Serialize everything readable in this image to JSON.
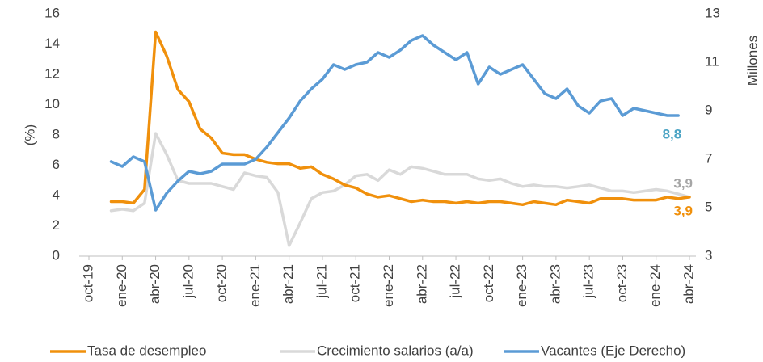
{
  "chart_data": {
    "type": "line",
    "ylabel": "(%)",
    "y2label": "Millones",
    "categories": [
      "oct-19",
      null,
      null,
      "ene-20",
      null,
      null,
      "abr-20",
      null,
      null,
      "jul-20",
      null,
      null,
      "oct-20",
      null,
      null,
      "ene-21",
      null,
      null,
      "abr-21",
      null,
      null,
      "jul-21",
      null,
      null,
      "oct-21",
      null,
      null,
      "ene-22",
      null,
      null,
      "abr-22",
      null,
      null,
      "jul-22",
      null,
      null,
      "oct-22",
      null,
      null,
      "ene-23",
      null,
      null,
      "abr-23",
      null,
      null,
      "jul-23",
      null,
      null,
      "oct-23",
      null,
      null,
      "ene-24",
      null,
      null,
      "abr-24"
    ],
    "ylim": [
      0,
      16
    ],
    "yticks": [
      0,
      2,
      4,
      6,
      8,
      10,
      12,
      14,
      16
    ],
    "y2lim": [
      3,
      13
    ],
    "y2ticks": [
      3,
      5,
      7,
      9,
      11,
      13
    ],
    "legend": "bottom",
    "series": [
      {
        "name": "Tasa de desempleo",
        "color": "#f0900c",
        "label_color": "#f0900c",
        "values": [
          null,
          null,
          3.6,
          3.6,
          3.5,
          4.4,
          14.8,
          13.2,
          11.0,
          10.2,
          8.4,
          7.8,
          6.8,
          6.7,
          6.7,
          6.4,
          6.2,
          6.1,
          6.1,
          5.8,
          5.9,
          5.4,
          5.1,
          4.7,
          4.5,
          4.1,
          3.9,
          4.0,
          3.8,
          3.6,
          3.7,
          3.6,
          3.6,
          3.5,
          3.6,
          3.5,
          3.6,
          3.6,
          3.5,
          3.4,
          3.6,
          3.5,
          3.4,
          3.7,
          3.6,
          3.5,
          3.8,
          3.8,
          3.8,
          3.7,
          3.7,
          3.7,
          3.9,
          3.8,
          3.9
        ],
        "value_labels": [
          null,
          null,
          null,
          null,
          null,
          null,
          null,
          null,
          null,
          null,
          null,
          null,
          null,
          null,
          null,
          null,
          null,
          null,
          null,
          null,
          null,
          null,
          null,
          null,
          null,
          null,
          null,
          null,
          null,
          null,
          null,
          null,
          null,
          null,
          null,
          null,
          null,
          null,
          null,
          null,
          null,
          null,
          null,
          null,
          null,
          null,
          null,
          null,
          null,
          null,
          null,
          null,
          null,
          null,
          "3,9"
        ]
      },
      {
        "name": "Crecimiento salarios (a/a)",
        "color": "#d9d9d9",
        "label_color": "#a6a6a6",
        "values": [
          null,
          null,
          3.0,
          3.1,
          3.0,
          3.5,
          8.1,
          6.7,
          5.0,
          4.8,
          4.8,
          4.8,
          4.6,
          4.4,
          5.5,
          5.3,
          5.2,
          4.2,
          0.7,
          2.2,
          3.8,
          4.2,
          4.3,
          4.7,
          5.3,
          5.4,
          5.0,
          5.7,
          5.4,
          5.9,
          5.8,
          5.6,
          5.4,
          5.4,
          5.4,
          5.1,
          5.0,
          5.1,
          4.8,
          4.6,
          4.7,
          4.6,
          4.6,
          4.5,
          4.6,
          4.7,
          4.5,
          4.3,
          4.3,
          4.2,
          4.3,
          4.4,
          4.3,
          4.1,
          3.9
        ],
        "value_labels": [
          null,
          null,
          null,
          null,
          null,
          null,
          null,
          null,
          null,
          null,
          null,
          null,
          null,
          null,
          null,
          null,
          null,
          null,
          null,
          null,
          null,
          null,
          null,
          null,
          null,
          null,
          null,
          null,
          null,
          null,
          null,
          null,
          null,
          null,
          null,
          null,
          null,
          null,
          null,
          null,
          null,
          null,
          null,
          null,
          null,
          null,
          null,
          null,
          null,
          null,
          null,
          null,
          null,
          null,
          "3,9"
        ]
      },
      {
        "name": "Vacantes (Eje Derecho)",
        "color": "#5b9bd5",
        "label_color": "#4aa3c4",
        "axis": "y2",
        "values": [
          null,
          null,
          6.9,
          6.7,
          7.1,
          6.9,
          4.9,
          5.6,
          6.1,
          6.5,
          6.4,
          6.5,
          6.8,
          6.8,
          6.8,
          7.0,
          7.5,
          8.1,
          8.7,
          9.4,
          9.9,
          10.3,
          10.9,
          10.7,
          10.9,
          11.0,
          11.4,
          11.2,
          11.5,
          11.9,
          12.1,
          11.7,
          11.4,
          11.1,
          11.4,
          10.1,
          10.8,
          10.5,
          10.7,
          10.9,
          10.3,
          9.7,
          9.5,
          9.9,
          9.2,
          8.9,
          9.4,
          9.5,
          8.8,
          9.1,
          9.0,
          8.9,
          8.8,
          8.8,
          null
        ],
        "value_labels": [
          null,
          null,
          null,
          null,
          null,
          null,
          null,
          null,
          null,
          null,
          null,
          null,
          null,
          null,
          null,
          null,
          null,
          null,
          null,
          null,
          null,
          null,
          null,
          null,
          null,
          null,
          null,
          null,
          null,
          null,
          null,
          null,
          null,
          null,
          null,
          null,
          null,
          null,
          null,
          null,
          null,
          null,
          null,
          null,
          null,
          null,
          null,
          null,
          null,
          null,
          null,
          null,
          null,
          "8,8",
          null
        ]
      }
    ]
  }
}
